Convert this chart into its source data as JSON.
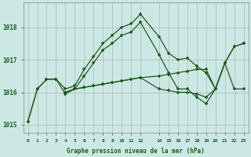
{
  "title": "Graphe pression niveau de la mer (hPa)",
  "background_color": "#cce8e4",
  "line_color": "#1a5c1a",
  "x_values": [
    0,
    1,
    2,
    3,
    4,
    5,
    6,
    7,
    8,
    9,
    10,
    11,
    12,
    14,
    15,
    16,
    17,
    18,
    19,
    20,
    21,
    22,
    23
  ],
  "x_labels": [
    "0",
    "1",
    "2",
    "3",
    "4",
    "5",
    "6",
    "7",
    "8",
    "9",
    "10",
    "11",
    "12",
    "14",
    "15",
    "16",
    "17",
    "18",
    "19",
    "20",
    "21",
    "22",
    "23"
  ],
  "line1": [
    1015.1,
    1016.1,
    1016.4,
    1016.4,
    1016.1,
    1016.2,
    1016.7,
    1017.1,
    1017.5,
    1017.75,
    1018.0,
    1018.1,
    1018.4,
    1017.7,
    1017.2,
    1017.0,
    1017.05,
    1016.8,
    1016.6,
    1016.1,
    1016.9,
    1017.4,
    1017.5
  ],
  "line2": [
    1015.1,
    1016.1,
    1016.4,
    1016.4,
    1015.95,
    1016.1,
    1016.15,
    1016.2,
    1016.25,
    1016.3,
    1016.35,
    1016.4,
    1016.45,
    1016.5,
    1016.55,
    1016.6,
    1016.65,
    1016.7,
    1016.7,
    1016.1,
    1016.9,
    1016.1,
    1016.1
  ],
  "line3": [
    null,
    null,
    null,
    null,
    1016.0,
    1016.1,
    1016.5,
    1016.9,
    1017.3,
    1017.5,
    1017.75,
    1017.85,
    1018.15,
    1017.15,
    1016.6,
    1016.1,
    1016.1,
    1015.85,
    1015.65,
    1016.1,
    1016.9,
    1017.4,
    1017.5
  ],
  "line4": [
    null,
    null,
    null,
    null,
    1016.0,
    1016.1,
    1016.15,
    1016.2,
    1016.25,
    1016.3,
    1016.35,
    1016.4,
    1016.45,
    1016.1,
    1016.05,
    1016.0,
    1016.0,
    1015.95,
    1015.85,
    1016.1,
    null,
    null,
    null
  ],
  "ylim_min": 1014.75,
  "ylim_max": 1018.75,
  "yticks": [
    1015,
    1016,
    1017,
    1018
  ]
}
